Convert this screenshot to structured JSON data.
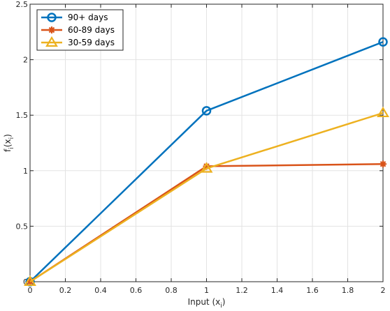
{
  "chart_data": {
    "type": "line",
    "x": [
      0,
      1,
      2
    ],
    "xlabel_main": "Input (x",
    "xlabel_sub": "i",
    "xlabel_close": ")",
    "ylabel_main": "f",
    "ylabel_sub1": "i",
    "ylabel_mid": "(x",
    "ylabel_sub2": "i",
    "ylabel_close": ")",
    "xlim": [
      0,
      2
    ],
    "ylim": [
      0,
      2.5
    ],
    "xticks": [
      0,
      0.2,
      0.4,
      0.6,
      0.8,
      1,
      1.2,
      1.4,
      1.6,
      1.8,
      2
    ],
    "xtick_labels": [
      "0",
      "0.2",
      "0.4",
      "0.6",
      "0.8",
      "1",
      "1.2",
      "1.4",
      "1.6",
      "1.8",
      "2"
    ],
    "yticks": [
      0,
      0.5,
      1,
      1.5,
      2,
      2.5
    ],
    "ytick_labels": [
      "0",
      "0.5",
      "1",
      "1.5",
      "2",
      "2.5"
    ],
    "grid": true,
    "legend_position": "top-left",
    "series": [
      {
        "name": "90+ days",
        "values": [
          0,
          1.54,
          2.16
        ],
        "color": "#0072BD",
        "marker": "circle"
      },
      {
        "name": "60-89 days",
        "values": [
          0,
          1.04,
          1.06
        ],
        "color": "#D95319",
        "marker": "asterisk"
      },
      {
        "name": "30-59 days",
        "values": [
          0,
          1.02,
          1.52
        ],
        "color": "#EDB120",
        "marker": "triangle"
      }
    ]
  }
}
